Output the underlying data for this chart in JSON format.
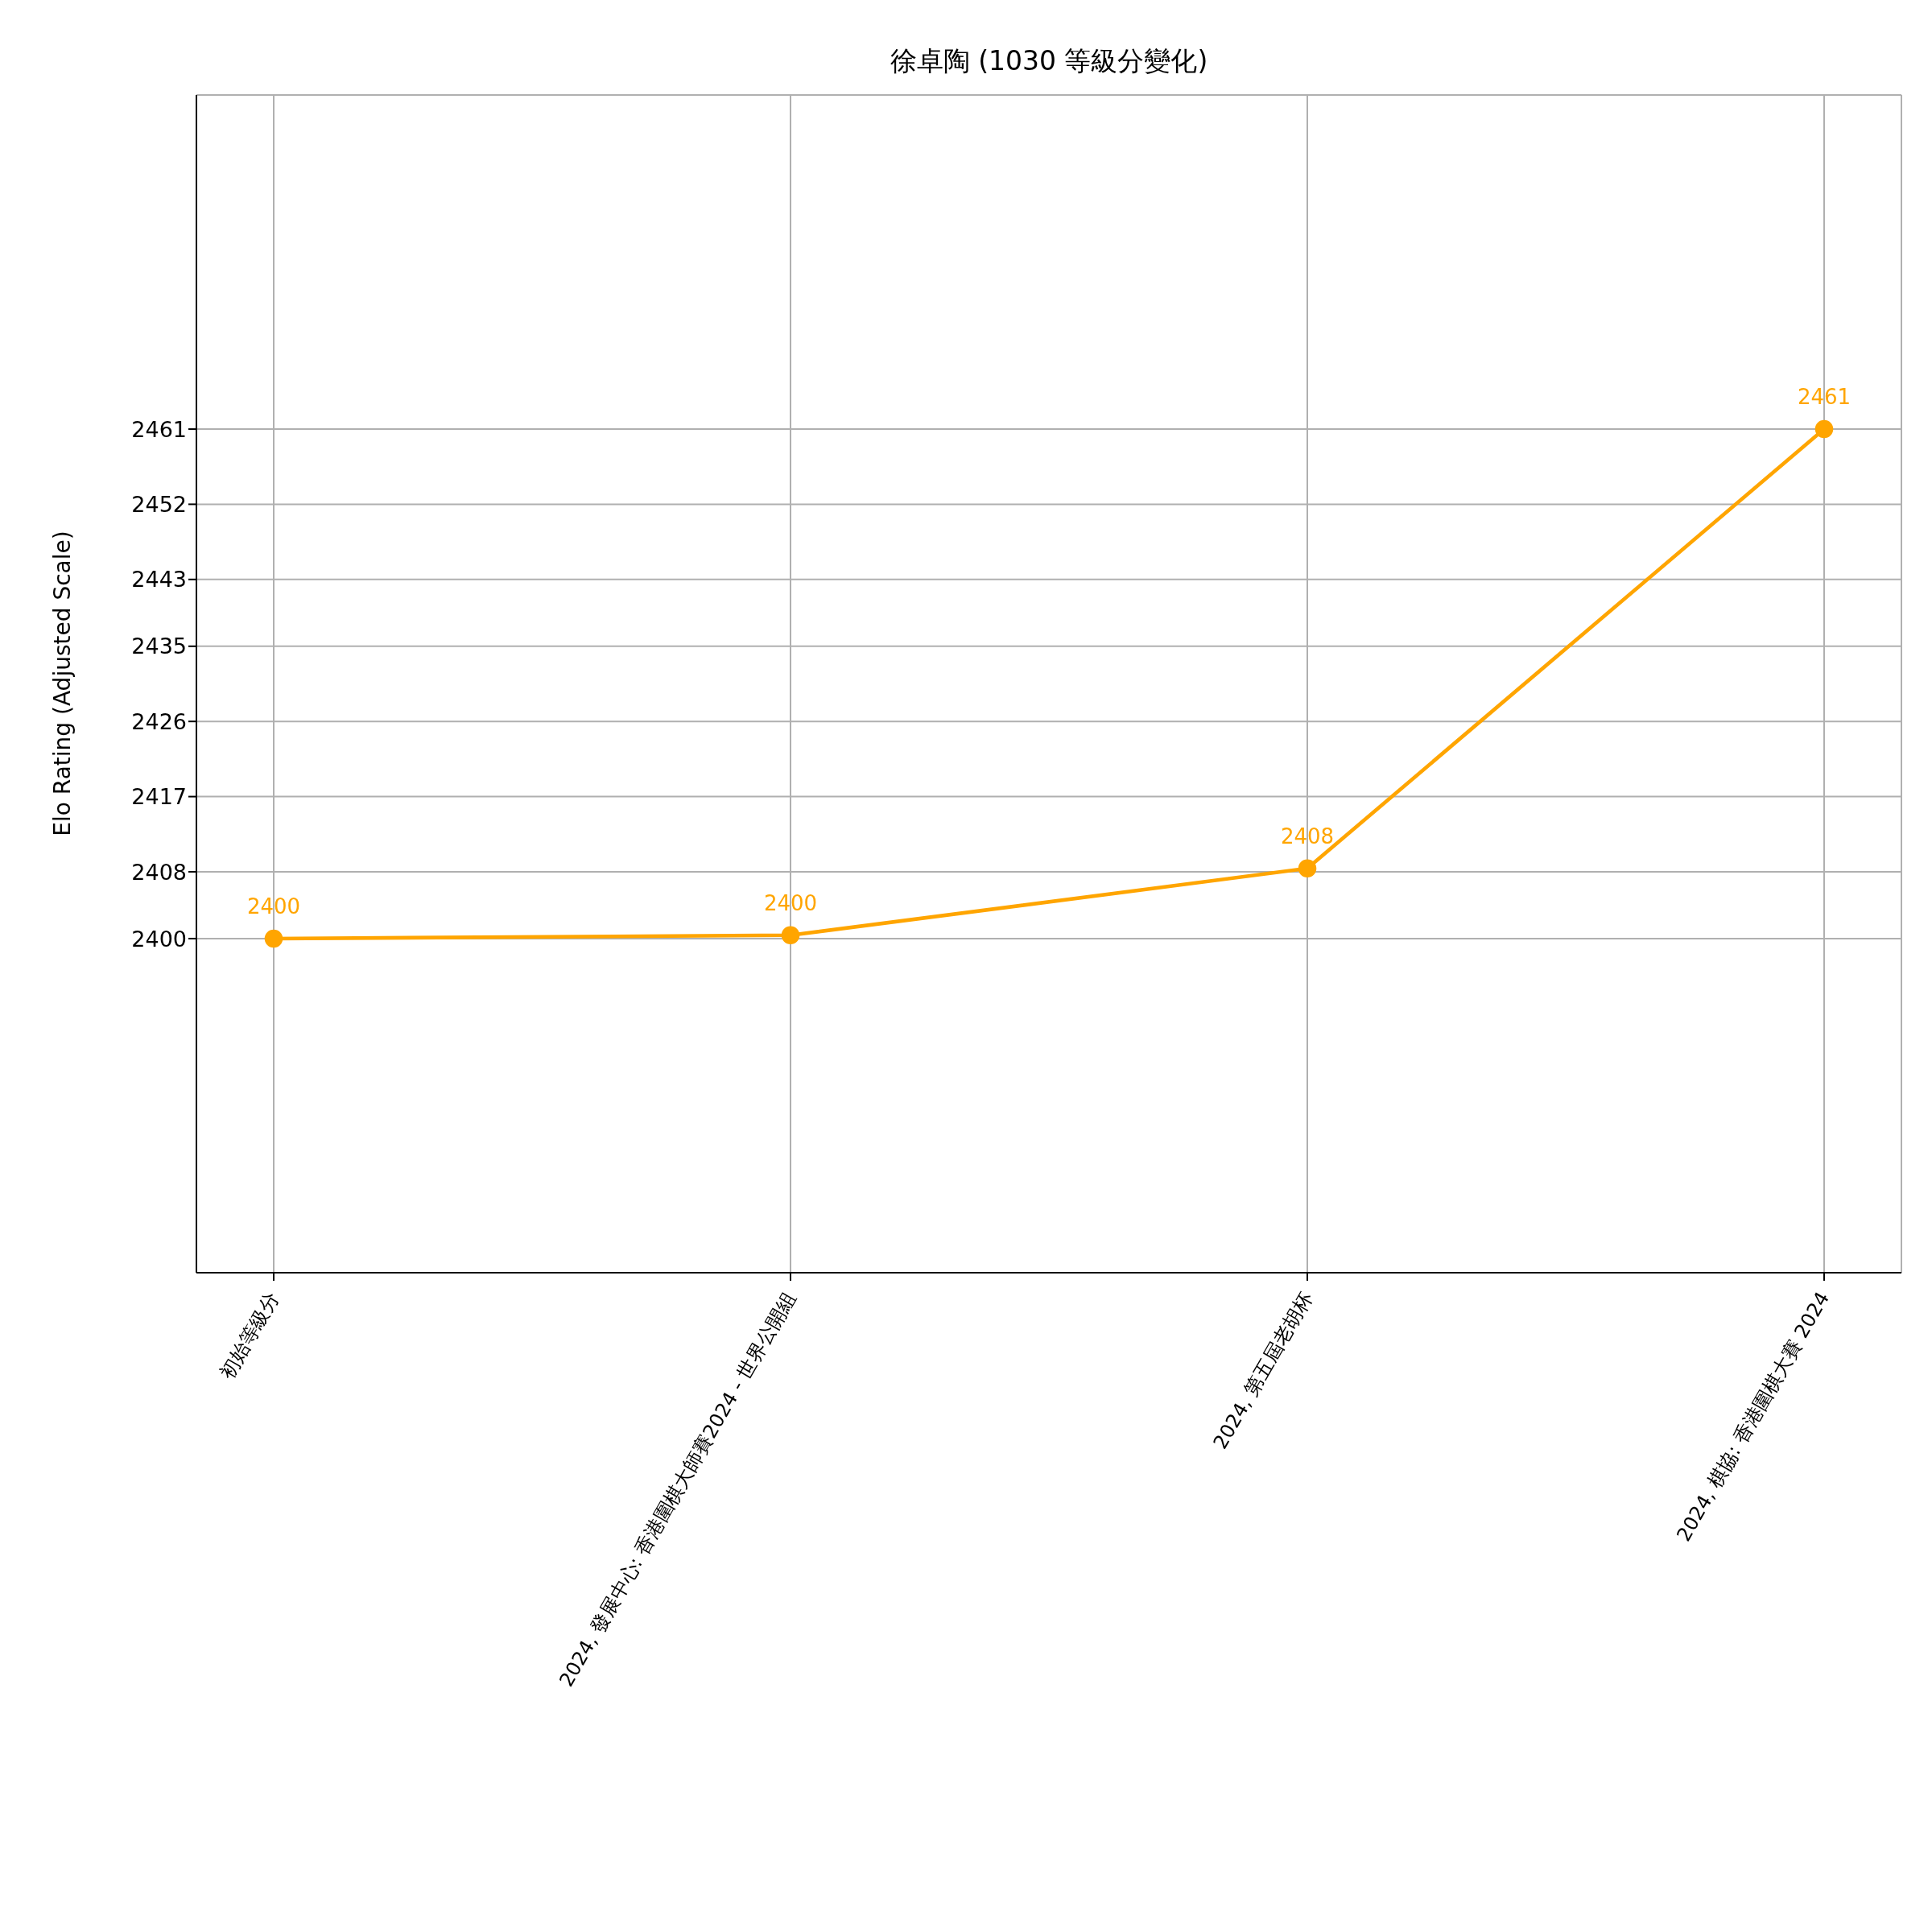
{
  "chart_data": {
    "type": "line",
    "title": "徐卓陶 (1030 等級分變化)",
    "ylabel": "Elo Rating (Adjusted Scale)",
    "categories": [
      "初始等級分",
      "2024, 發展中心: 香港圍棋大師賽2024 - 世界公開組",
      "2024, 第五屆老胡杯",
      "2024, 棋協: 香港圍棋大賽 2024"
    ],
    "series": [
      {
        "color": "#ffa500",
        "values": [
          2400,
          2400.4,
          2408.4,
          2461
        ],
        "value_labels": [
          "2400",
          "2400",
          "2408",
          "2461"
        ]
      }
    ],
    "ylim": [
      2360,
      2501
    ],
    "yticks": [
      2400,
      2408,
      2417,
      2426,
      2435,
      2443,
      2452,
      2461
    ],
    "grid": true,
    "marker": "circle",
    "line_style": "solid"
  }
}
